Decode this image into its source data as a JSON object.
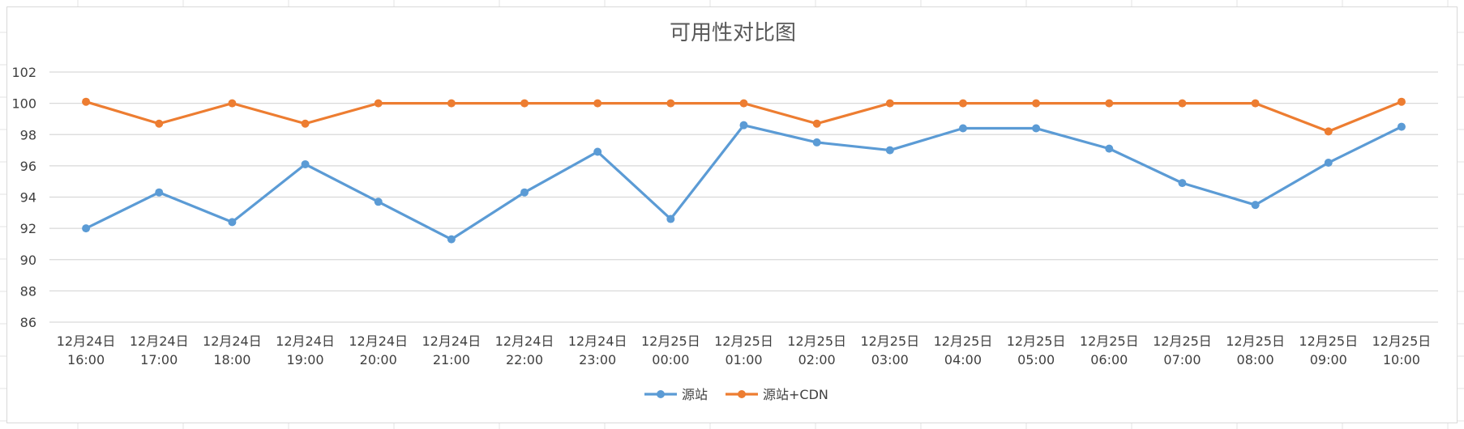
{
  "chart_data": {
    "type": "line",
    "title": "可用性对比图",
    "xlabel": "",
    "ylabel": "",
    "ylim": [
      86,
      102
    ],
    "yticks": [
      86,
      88,
      90,
      92,
      94,
      96,
      98,
      100,
      102
    ],
    "grid": true,
    "legend_position": "bottom",
    "categories": [
      [
        "12月24日",
        "16:00"
      ],
      [
        "12月24日",
        "17:00"
      ],
      [
        "12月24日",
        "18:00"
      ],
      [
        "12月24日",
        "19:00"
      ],
      [
        "12月24日",
        "20:00"
      ],
      [
        "12月24日",
        "21:00"
      ],
      [
        "12月24日",
        "22:00"
      ],
      [
        "12月24日",
        "23:00"
      ],
      [
        "12月25日",
        "00:00"
      ],
      [
        "12月25日",
        "01:00"
      ],
      [
        "12月25日",
        "02:00"
      ],
      [
        "12月25日",
        "03:00"
      ],
      [
        "12月25日",
        "04:00"
      ],
      [
        "12月25日",
        "05:00"
      ],
      [
        "12月25日",
        "06:00"
      ],
      [
        "12月25日",
        "07:00"
      ],
      [
        "12月25日",
        "08:00"
      ],
      [
        "12月25日",
        "09:00"
      ],
      [
        "12月25日",
        "10:00"
      ]
    ],
    "series": [
      {
        "name": "源站",
        "color": "#5b9bd5",
        "values": [
          92.0,
          94.3,
          92.4,
          96.1,
          93.7,
          91.3,
          94.3,
          96.9,
          92.6,
          98.6,
          97.5,
          97.0,
          98.4,
          98.4,
          97.1,
          94.9,
          93.5,
          96.2,
          98.5
        ]
      },
      {
        "name": "源站+CDN",
        "color": "#ed7d31",
        "values": [
          100.1,
          98.7,
          100.0,
          98.7,
          100.0,
          100.0,
          100.0,
          100.0,
          100.0,
          100.0,
          98.7,
          100.0,
          100.0,
          100.0,
          100.0,
          100.0,
          100.0,
          98.2,
          100.1
        ]
      }
    ]
  }
}
